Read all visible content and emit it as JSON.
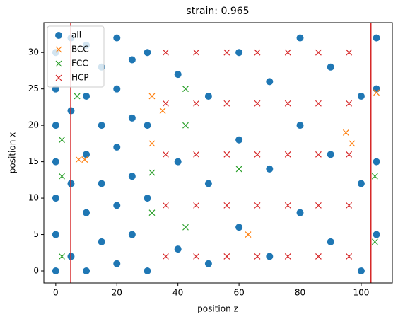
{
  "chart_data": {
    "type": "scatter",
    "title": "strain: 0.965",
    "xlabel": "position z",
    "ylabel": "position x",
    "xlim": [
      -3.9,
      110.2
    ],
    "ylim": [
      -1.65,
      34.1
    ],
    "xticks": [
      0,
      20,
      40,
      60,
      80,
      100
    ],
    "yticks": [
      0,
      5,
      10,
      15,
      20,
      25,
      30
    ],
    "legend": "upper left",
    "vlines": [
      {
        "value": 4.9,
        "color": "#d62728"
      },
      {
        "value": 103.2,
        "color": "#d62728"
      }
    ],
    "series": [
      {
        "name": "all",
        "color": "#1f77b4",
        "marker": "o",
        "x": [
          0,
          0,
          0,
          0,
          0,
          0,
          0,
          5,
          5,
          5,
          5,
          10,
          10,
          10,
          10,
          10,
          15,
          15,
          15,
          15,
          20,
          20,
          20,
          20,
          20,
          25,
          25,
          25,
          25,
          30,
          30,
          30,
          30,
          40,
          40,
          40,
          50,
          50,
          50,
          60,
          60,
          60,
          70,
          70,
          70,
          80,
          80,
          80,
          90,
          90,
          90,
          100,
          100,
          100,
          105,
          105,
          105,
          105
        ],
        "y": [
          0,
          5,
          10,
          15,
          20,
          25,
          30,
          2,
          12,
          22,
          32,
          0,
          8,
          16,
          24,
          31,
          4,
          12,
          20,
          28,
          1,
          9,
          17,
          25,
          32,
          5,
          13,
          21,
          29,
          0,
          10,
          20,
          30,
          3,
          15,
          27,
          1,
          12,
          24,
          6,
          18,
          30,
          2,
          14,
          26,
          8,
          20,
          32,
          4,
          16,
          28,
          0,
          12,
          24,
          5,
          15,
          25,
          32
        ]
      },
      {
        "name": "BCC",
        "color": "#ff7f0e",
        "marker": "x",
        "x": [
          31.5,
          31.5,
          7.5,
          9.5,
          35,
          95,
          97,
          63,
          105
        ],
        "y": [
          24,
          17.5,
          15.3,
          15.3,
          22,
          19,
          17.5,
          5,
          24.5
        ]
      },
      {
        "name": "FCC",
        "color": "#2ca02c",
        "marker": "x",
        "x": [
          2,
          2,
          7,
          42.5,
          42.5,
          42.5,
          31.5,
          31.5,
          104.5,
          104.5,
          60,
          2
        ],
        "y": [
          13,
          2,
          24,
          25,
          20,
          6,
          8,
          13.5,
          13,
          4,
          14,
          18
        ]
      },
      {
        "name": "HCP",
        "color": "#d62728",
        "marker": "x",
        "x": [
          36,
          36,
          36,
          36,
          36,
          46,
          46,
          46,
          46,
          46,
          56,
          56,
          56,
          56,
          56,
          66,
          66,
          66,
          66,
          66,
          76,
          76,
          76,
          76,
          76,
          86,
          86,
          86,
          86,
          86,
          96,
          96,
          96,
          96,
          96
        ],
        "y": [
          2,
          9,
          16,
          23,
          30,
          2,
          9,
          16,
          23,
          30,
          2,
          9,
          16,
          23,
          30,
          2,
          9,
          16,
          23,
          30,
          2,
          9,
          16,
          23,
          30,
          2,
          9,
          16,
          23,
          30,
          2,
          9,
          16,
          23,
          30
        ]
      }
    ]
  }
}
